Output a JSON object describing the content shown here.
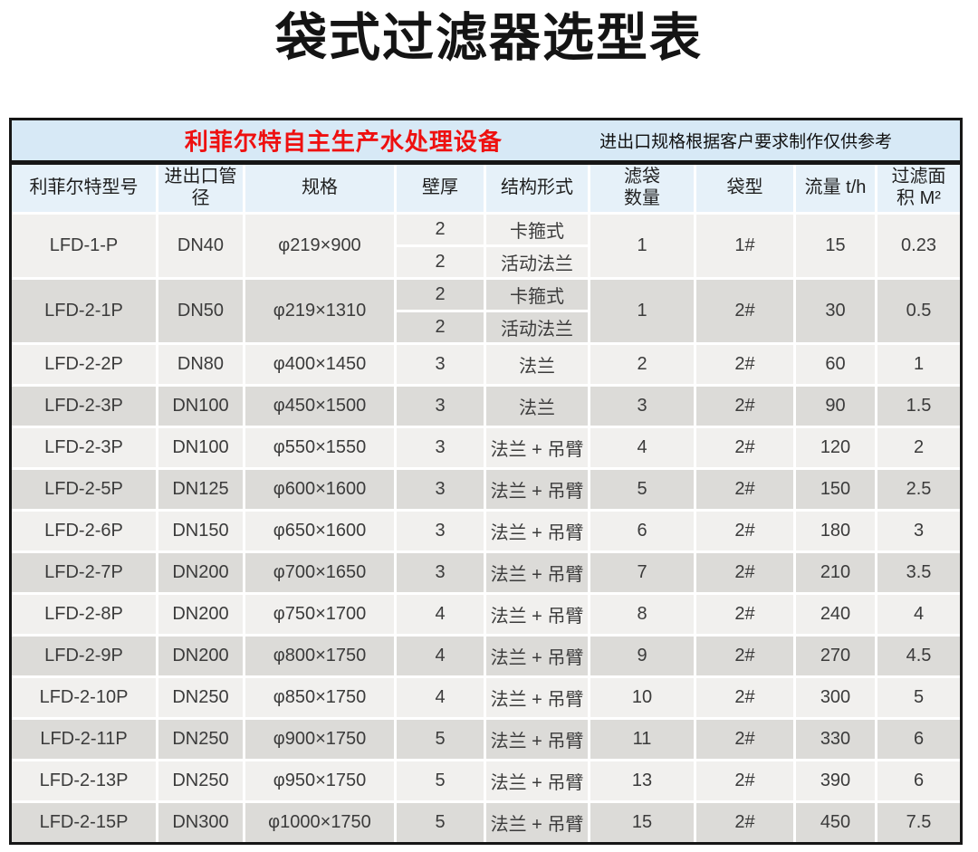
{
  "page_title": "袋式过滤器选型表",
  "table": {
    "banner": {
      "brand_text": "利菲尔特自主生产水处理设备",
      "note_text": "进出口规格根据客户要求制作仅供参考",
      "brand_color": "#ee1010",
      "background": "#d7e9f6"
    },
    "colors": {
      "header_bg": "#e6f1f9",
      "row_light": "#f1f0ee",
      "row_dark": "#dcdbd8",
      "border": "#161616"
    },
    "columns": [
      {
        "key": "model",
        "lines": [
          "利菲尔特型号"
        ]
      },
      {
        "key": "port",
        "lines": [
          "进出口管",
          "径"
        ]
      },
      {
        "key": "spec",
        "lines": [
          "规格"
        ]
      },
      {
        "key": "wall",
        "lines": [
          "壁厚"
        ]
      },
      {
        "key": "structure",
        "lines": [
          "结构形式"
        ]
      },
      {
        "key": "bags",
        "lines": [
          "滤袋",
          "数量"
        ]
      },
      {
        "key": "bag-type",
        "lines": [
          "袋型"
        ]
      },
      {
        "key": "flow",
        "lines": [
          "流量 t/h"
        ]
      },
      {
        "key": "area",
        "lines": [
          "过滤面",
          "积 M²"
        ]
      }
    ],
    "rows": [
      {
        "model": "LFD-1-P",
        "port": "DN40",
        "spec": "φ219×900",
        "variants": [
          {
            "wall": "2",
            "structure": "卡箍式"
          },
          {
            "wall": "2",
            "structure": "活动法兰"
          }
        ],
        "bags": "1",
        "bag_type": "1#",
        "flow": "15",
        "area": "0.23"
      },
      {
        "model": "LFD-2-1P",
        "port": "DN50",
        "spec": "φ219×1310",
        "variants": [
          {
            "wall": "2",
            "structure": "卡箍式"
          },
          {
            "wall": "2",
            "structure": "活动法兰"
          }
        ],
        "bags": "1",
        "bag_type": "2#",
        "flow": "30",
        "area": "0.5"
      },
      {
        "model": "LFD-2-2P",
        "port": "DN80",
        "spec": "φ400×1450",
        "variants": [
          {
            "wall": "3",
            "structure": "法兰"
          }
        ],
        "bags": "2",
        "bag_type": "2#",
        "flow": "60",
        "area": "1"
      },
      {
        "model": "LFD-2-3P",
        "port": "DN100",
        "spec": "φ450×1500",
        "variants": [
          {
            "wall": "3",
            "structure": "法兰"
          }
        ],
        "bags": "3",
        "bag_type": "2#",
        "flow": "90",
        "area": "1.5"
      },
      {
        "model": "LFD-2-3P",
        "port": "DN100",
        "spec": "φ550×1550",
        "variants": [
          {
            "wall": "3",
            "structure": "法兰 + 吊臂"
          }
        ],
        "bags": "4",
        "bag_type": "2#",
        "flow": "120",
        "area": "2"
      },
      {
        "model": "LFD-2-5P",
        "port": "DN125",
        "spec": "φ600×1600",
        "variants": [
          {
            "wall": "3",
            "structure": "法兰 + 吊臂"
          }
        ],
        "bags": "5",
        "bag_type": "2#",
        "flow": "150",
        "area": "2.5"
      },
      {
        "model": "LFD-2-6P",
        "port": "DN150",
        "spec": "φ650×1600",
        "variants": [
          {
            "wall": "3",
            "structure": "法兰 + 吊臂"
          }
        ],
        "bags": "6",
        "bag_type": "2#",
        "flow": "180",
        "area": "3"
      },
      {
        "model": "LFD-2-7P",
        "port": "DN200",
        "spec": "φ700×1650",
        "variants": [
          {
            "wall": "3",
            "structure": "法兰 + 吊臂"
          }
        ],
        "bags": "7",
        "bag_type": "2#",
        "flow": "210",
        "area": "3.5"
      },
      {
        "model": "LFD-2-8P",
        "port": "DN200",
        "spec": "φ750×1700",
        "variants": [
          {
            "wall": "4",
            "structure": "法兰 + 吊臂"
          }
        ],
        "bags": "8",
        "bag_type": "2#",
        "flow": "240",
        "area": "4"
      },
      {
        "model": "LFD-2-9P",
        "port": "DN200",
        "spec": "φ800×1750",
        "variants": [
          {
            "wall": "4",
            "structure": "法兰 + 吊臂"
          }
        ],
        "bags": "9",
        "bag_type": "2#",
        "flow": "270",
        "area": "4.5"
      },
      {
        "model": "LFD-2-10P",
        "port": "DN250",
        "spec": "φ850×1750",
        "variants": [
          {
            "wall": "4",
            "structure": "法兰 + 吊臂"
          }
        ],
        "bags": "10",
        "bag_type": "2#",
        "flow": "300",
        "area": "5"
      },
      {
        "model": "LFD-2-11P",
        "port": "DN250",
        "spec": "φ900×1750",
        "variants": [
          {
            "wall": "5",
            "structure": "法兰 + 吊臂"
          }
        ],
        "bags": "11",
        "bag_type": "2#",
        "flow": "330",
        "area": "6"
      },
      {
        "model": "LFD-2-13P",
        "port": "DN250",
        "spec": "φ950×1750",
        "variants": [
          {
            "wall": "5",
            "structure": "法兰 + 吊臂"
          }
        ],
        "bags": "13",
        "bag_type": "2#",
        "flow": "390",
        "area": "6"
      },
      {
        "model": "LFD-2-15P",
        "port": "DN300",
        "spec": "φ1000×1750",
        "variants": [
          {
            "wall": "5",
            "structure": "法兰 + 吊臂"
          }
        ],
        "bags": "15",
        "bag_type": "2#",
        "flow": "450",
        "area": "7.5"
      }
    ]
  }
}
